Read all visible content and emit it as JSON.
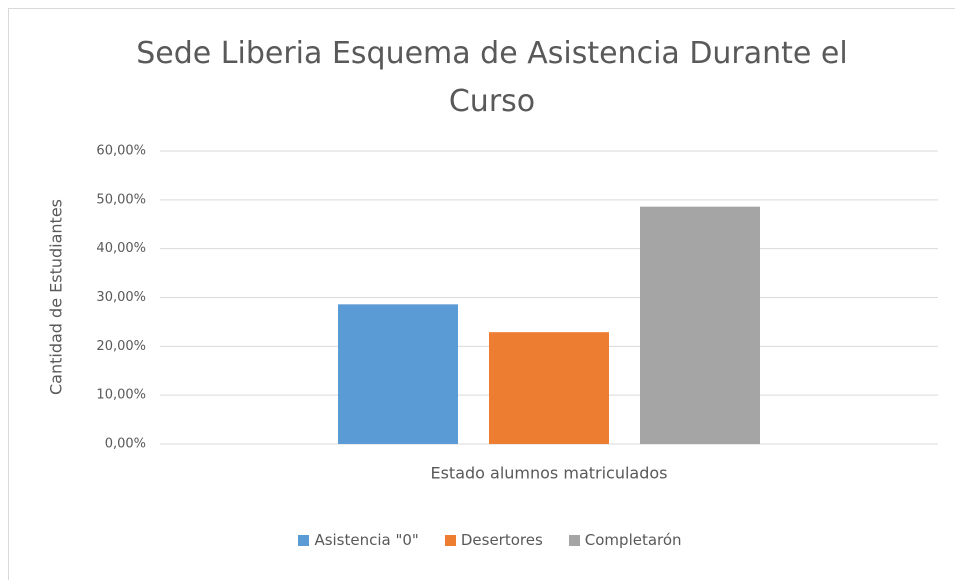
{
  "chart_data": {
    "type": "bar",
    "title": "Sede Liberia Esquema de Asistencia Durante el Curso",
    "x_label": "Estado alumnos matriculados",
    "y_label": "Cantidad de Estudiantes",
    "categories": [
      "Estado alumnos matriculados"
    ],
    "series": [
      {
        "name": "Asistencia \"0\"",
        "color": "#5b9bd5",
        "values": [
          28.6
        ]
      },
      {
        "name": "Desertores",
        "color": "#ed7d31",
        "values": [
          22.9
        ]
      },
      {
        "name": "Completarón",
        "color": "#a5a5a5",
        "values": [
          48.6
        ]
      }
    ],
    "ylim": [
      0,
      60
    ],
    "yticks": [
      {
        "value": 0,
        "label": "0,00%"
      },
      {
        "value": 10,
        "label": "10,00%"
      },
      {
        "value": 20,
        "label": "20,00%"
      },
      {
        "value": 30,
        "label": "30,00%"
      },
      {
        "value": 40,
        "label": "40,00%"
      },
      {
        "value": 50,
        "label": "50,00%"
      },
      {
        "value": 60,
        "label": "60,00%"
      }
    ],
    "grid": true,
    "legend": "bottom"
  }
}
